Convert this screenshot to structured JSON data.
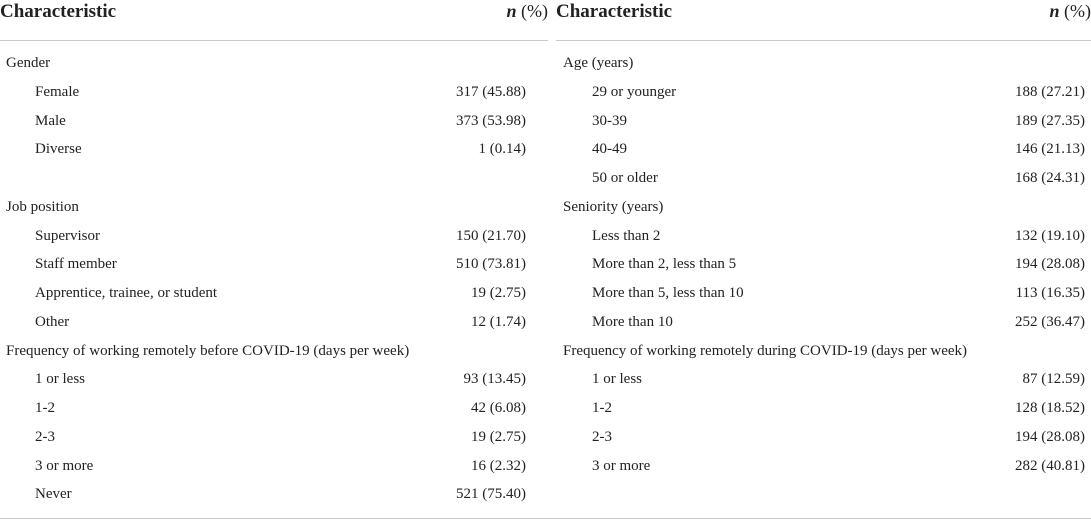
{
  "header": {
    "char_label": "Characteristic",
    "n_label": "n",
    "pct_label": " (%)"
  },
  "left": [
    {
      "label": "Gender",
      "value": "",
      "sub": false
    },
    {
      "label": "Female",
      "value": "317 (45.88)",
      "sub": true
    },
    {
      "label": "Male",
      "value": "373 (53.98)",
      "sub": true
    },
    {
      "label": "Diverse",
      "value": "1 (0.14)",
      "sub": true
    },
    {
      "label": "",
      "value": "",
      "sub": false
    },
    {
      "label": "Job position",
      "value": "",
      "sub": false
    },
    {
      "label": "Supervisor",
      "value": "150 (21.70)",
      "sub": true
    },
    {
      "label": "Staff member",
      "value": "510 (73.81)",
      "sub": true
    },
    {
      "label": "Apprentice, trainee, or student",
      "value": "19 (2.75)",
      "sub": true
    },
    {
      "label": "Other",
      "value": "12 (1.74)",
      "sub": true
    },
    {
      "label": "Frequency of working remotely before COVID-19 (days per week)",
      "value": "",
      "sub": false
    },
    {
      "label": "1 or less",
      "value": "93 (13.45)",
      "sub": true
    },
    {
      "label": "1-2",
      "value": "42 (6.08)",
      "sub": true
    },
    {
      "label": "2-3",
      "value": "19 (2.75)",
      "sub": true
    },
    {
      "label": "3 or more",
      "value": "16 (2.32)",
      "sub": true
    },
    {
      "label": "Never",
      "value": "521 (75.40)",
      "sub": true
    }
  ],
  "right": [
    {
      "label": "Age (years)",
      "value": "",
      "sub": false
    },
    {
      "label": "29 or younger",
      "value": "188 (27.21)",
      "sub": true
    },
    {
      "label": "30-39",
      "value": "189 (27.35)",
      "sub": true
    },
    {
      "label": " 40-49",
      "value": "146 (21.13)",
      "sub": true
    },
    {
      "label": "50 or older",
      "value": "168 (24.31)",
      "sub": true
    },
    {
      "label": "Seniority (years)",
      "value": "",
      "sub": false
    },
    {
      "label": "Less than 2",
      "value": "132 (19.10)",
      "sub": true
    },
    {
      "label": "More than 2, less than 5",
      "value": "194 (28.08)",
      "sub": true
    },
    {
      "label": "More than 5, less than 10",
      "value": "113 (16.35)",
      "sub": true
    },
    {
      "label": "More than 10",
      "value": "252 (36.47)",
      "sub": true
    },
    {
      "label": "Frequency of working remotely during COVID-19 (days per week)",
      "value": "",
      "sub": false
    },
    {
      "label": "1 or less",
      "value": "87 (12.59)",
      "sub": true
    },
    {
      "label": "1-2",
      "value": "128 (18.52)",
      "sub": true
    },
    {
      "label": "2-3",
      "value": "194 (28.08)",
      "sub": true
    },
    {
      "label": "3 or more",
      "value": "282 (40.81)",
      "sub": true
    }
  ]
}
